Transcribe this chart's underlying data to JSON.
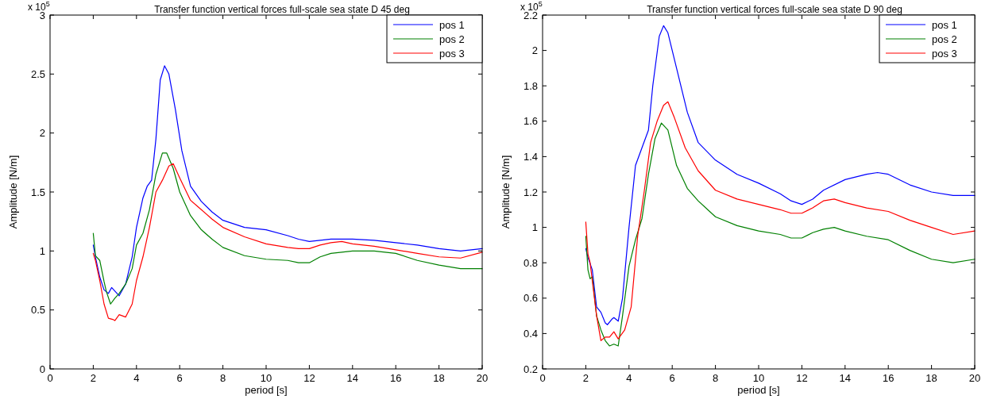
{
  "chart_data": [
    {
      "type": "line",
      "title": "Transfer function vertical forces full-scale sea state D 45 deg",
      "xlabel": "period [s]",
      "ylabel": "Amplitude [N/m]",
      "annotations": [
        "x 10$^{5}$"
      ],
      "xlim": [
        0,
        20
      ],
      "xticks": [
        0,
        2,
        4,
        6,
        8,
        10,
        12,
        14,
        16,
        18,
        20
      ],
      "ylim": [
        0,
        3
      ],
      "yticks": [
        0,
        0.5,
        1,
        1.5,
        2,
        2.5,
        3
      ],
      "legend": "top right",
      "grid": false,
      "series": [
        {
          "name": "pos 1",
          "color": "#0000ff",
          "x": [
            2.0,
            2.1,
            2.3,
            2.5,
            2.7,
            2.85,
            3.0,
            3.2,
            3.5,
            3.8,
            4.0,
            4.3,
            4.5,
            4.7,
            4.9,
            5.1,
            5.3,
            5.5,
            5.8,
            6.1,
            6.5,
            7,
            7.5,
            8,
            9,
            10,
            11,
            11.5,
            12,
            12.5,
            13,
            14,
            15,
            16,
            17,
            18,
            19,
            20
          ],
          "values": [
            1.05,
            0.95,
            0.78,
            0.67,
            0.64,
            0.69,
            0.66,
            0.62,
            0.72,
            0.95,
            1.2,
            1.45,
            1.55,
            1.6,
            1.95,
            2.45,
            2.57,
            2.5,
            2.2,
            1.85,
            1.55,
            1.42,
            1.33,
            1.26,
            1.2,
            1.18,
            1.13,
            1.1,
            1.08,
            1.09,
            1.1,
            1.1,
            1.09,
            1.07,
            1.05,
            1.02,
            1.0,
            1.02
          ]
        },
        {
          "name": "pos 2",
          "color": "#008000",
          "x": [
            2.0,
            2.1,
            2.3,
            2.5,
            2.6,
            2.8,
            3.0,
            3.2,
            3.5,
            3.8,
            4.0,
            4.3,
            4.6,
            4.9,
            5.2,
            5.4,
            5.7,
            6.0,
            6.5,
            7,
            7.5,
            8,
            9,
            10,
            11,
            11.5,
            12,
            12.5,
            13,
            14,
            15,
            16,
            17,
            18,
            19,
            20
          ],
          "values": [
            1.15,
            0.96,
            0.92,
            0.74,
            0.66,
            0.55,
            0.6,
            0.64,
            0.72,
            0.85,
            1.05,
            1.15,
            1.35,
            1.65,
            1.83,
            1.83,
            1.7,
            1.5,
            1.3,
            1.18,
            1.1,
            1.03,
            0.96,
            0.93,
            0.92,
            0.9,
            0.9,
            0.95,
            0.98,
            1.0,
            1.0,
            0.98,
            0.92,
            0.88,
            0.85,
            0.85
          ]
        },
        {
          "name": "pos 3",
          "color": "#ff0000",
          "x": [
            2.0,
            2.1,
            2.3,
            2.5,
            2.7,
            2.9,
            3.0,
            3.2,
            3.5,
            3.8,
            4.0,
            4.3,
            4.6,
            4.9,
            5.2,
            5.5,
            5.7,
            6.0,
            6.5,
            7,
            7.5,
            8,
            9,
            10,
            11,
            11.5,
            12,
            12.5,
            13,
            13.5,
            14,
            15,
            16,
            17,
            18,
            19,
            20
          ],
          "values": [
            0.98,
            0.92,
            0.75,
            0.55,
            0.43,
            0.42,
            0.41,
            0.46,
            0.44,
            0.55,
            0.75,
            0.95,
            1.2,
            1.5,
            1.6,
            1.72,
            1.74,
            1.62,
            1.43,
            1.35,
            1.27,
            1.2,
            1.12,
            1.06,
            1.03,
            1.02,
            1.02,
            1.05,
            1.07,
            1.08,
            1.06,
            1.04,
            1.01,
            0.98,
            0.95,
            0.94,
            0.99
          ]
        }
      ]
    },
    {
      "type": "line",
      "title": "Transfer function vertical forces full-scale sea state D 90 deg",
      "xlabel": "period [s]",
      "ylabel": "Amplitude [N/m]",
      "annotations": [
        "x 10$^{5}$"
      ],
      "xlim": [
        0,
        20
      ],
      "xticks": [
        0,
        2,
        4,
        6,
        8,
        10,
        12,
        14,
        16,
        18,
        20
      ],
      "ylim": [
        0.2,
        2.2
      ],
      "yticks": [
        0.2,
        0.4,
        0.6,
        0.8,
        1,
        1.2,
        1.4,
        1.6,
        1.8,
        2,
        2.2
      ],
      "legend": "top right",
      "grid": false,
      "series": [
        {
          "name": "pos 1",
          "color": "#0000ff",
          "x": [
            2.0,
            2.1,
            2.3,
            2.5,
            2.7,
            2.9,
            3.0,
            3.2,
            3.3,
            3.5,
            3.7,
            4.0,
            4.3,
            4.6,
            4.9,
            5.1,
            5.4,
            5.6,
            5.8,
            6.2,
            6.7,
            7.2,
            8,
            9,
            10,
            11,
            11.5,
            12,
            12.5,
            13,
            14,
            15,
            15.5,
            16,
            17,
            18,
            19,
            20
          ],
          "values": [
            0.88,
            0.83,
            0.76,
            0.55,
            0.52,
            0.46,
            0.45,
            0.48,
            0.49,
            0.47,
            0.6,
            1.0,
            1.35,
            1.45,
            1.55,
            1.8,
            2.08,
            2.14,
            2.1,
            1.9,
            1.65,
            1.48,
            1.38,
            1.3,
            1.25,
            1.19,
            1.15,
            1.13,
            1.16,
            1.21,
            1.27,
            1.3,
            1.31,
            1.3,
            1.24,
            1.2,
            1.18,
            1.18
          ]
        },
        {
          "name": "pos 2",
          "color": "#008000",
          "x": [
            2.0,
            2.1,
            2.2,
            2.3,
            2.5,
            2.7,
            2.9,
            3.1,
            3.3,
            3.5,
            3.7,
            4.0,
            4.3,
            4.6,
            4.9,
            5.2,
            5.5,
            5.8,
            6.2,
            6.7,
            7.2,
            8,
            9,
            10,
            11,
            11.5,
            12,
            12.5,
            13,
            13.5,
            14,
            15,
            16,
            17,
            18,
            19,
            20
          ],
          "values": [
            0.95,
            0.76,
            0.71,
            0.72,
            0.5,
            0.42,
            0.36,
            0.33,
            0.34,
            0.33,
            0.5,
            0.78,
            0.93,
            1.05,
            1.3,
            1.5,
            1.59,
            1.55,
            1.35,
            1.22,
            1.15,
            1.06,
            1.01,
            0.98,
            0.96,
            0.94,
            0.94,
            0.97,
            0.99,
            1.0,
            0.98,
            0.95,
            0.93,
            0.87,
            0.82,
            0.8,
            0.82
          ]
        },
        {
          "name": "pos 3",
          "color": "#ff0000",
          "x": [
            2.0,
            2.1,
            2.2,
            2.3,
            2.5,
            2.7,
            2.9,
            3.1,
            3.3,
            3.5,
            3.8,
            4.1,
            4.4,
            4.7,
            5.0,
            5.3,
            5.6,
            5.8,
            6.1,
            6.6,
            7.2,
            8,
            9,
            10,
            11,
            11.5,
            12,
            12.5,
            13,
            13.5,
            14,
            15,
            16,
            17,
            18,
            19,
            20
          ],
          "values": [
            1.03,
            0.85,
            0.8,
            0.7,
            0.5,
            0.36,
            0.38,
            0.38,
            0.41,
            0.37,
            0.42,
            0.55,
            0.95,
            1.2,
            1.48,
            1.6,
            1.69,
            1.71,
            1.62,
            1.45,
            1.32,
            1.21,
            1.16,
            1.13,
            1.1,
            1.08,
            1.08,
            1.11,
            1.15,
            1.16,
            1.14,
            1.11,
            1.09,
            1.04,
            1.0,
            0.96,
            0.98
          ]
        }
      ]
    }
  ]
}
